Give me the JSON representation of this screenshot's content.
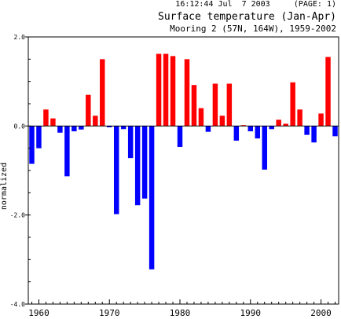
{
  "header": {
    "stamp": "16:12:44 Jul  7 2003     (PAGE: 1)",
    "title": "Surface temperature (Jan-Apr)",
    "subtitle": "Mooring 2 (57N, 164W), 1959-2002"
  },
  "colors": {
    "positive": "#ff0000",
    "negative": "#0000ff",
    "axis": "#000000"
  },
  "chart_data": {
    "type": "bar",
    "title": "Surface temperature (Jan-Apr)",
    "subtitle": "Mooring 2 (57N, 164W), 1959-2002",
    "ylabel": "normalized",
    "xlabel": "",
    "ylim": [
      -4.0,
      2.0
    ],
    "xlim": [
      1958.5,
      2002.5
    ],
    "yticks": [
      {
        "value": 2.0,
        "label": "2.0"
      },
      {
        "value": 0.0,
        "label": "0.0"
      },
      {
        "value": -2.0,
        "label": "-2.0"
      },
      {
        "value": -4.0,
        "label": "-4.0"
      }
    ],
    "xticks": [
      {
        "value": 1960,
        "label": "1960"
      },
      {
        "value": 1970,
        "label": "1970"
      },
      {
        "value": 1980,
        "label": "1980"
      },
      {
        "value": 1990,
        "label": "1990"
      },
      {
        "value": 2000,
        "label": "2000"
      }
    ],
    "grid": false,
    "years": [
      1959,
      1960,
      1961,
      1962,
      1963,
      1964,
      1965,
      1966,
      1967,
      1968,
      1969,
      1970,
      1971,
      1972,
      1973,
      1974,
      1975,
      1976,
      1977,
      1978,
      1979,
      1980,
      1981,
      1982,
      1983,
      1984,
      1985,
      1986,
      1987,
      1988,
      1989,
      1990,
      1991,
      1992,
      1993,
      1994,
      1995,
      1996,
      1997,
      1998,
      1999,
      2000,
      2001,
      2002
    ],
    "values": [
      -0.85,
      -0.5,
      0.37,
      0.17,
      -0.15,
      -1.13,
      -0.12,
      -0.08,
      0.7,
      0.23,
      1.5,
      -0.03,
      -1.98,
      -0.07,
      -0.72,
      -1.78,
      -1.63,
      -3.22,
      1.62,
      1.62,
      1.57,
      -0.47,
      1.5,
      0.92,
      0.4,
      -0.13,
      0.95,
      0.23,
      0.95,
      -0.33,
      0.02,
      -0.12,
      -0.28,
      -0.98,
      -0.07,
      0.14,
      0.05,
      0.98,
      0.37,
      -0.2,
      -0.37,
      0.28,
      1.55,
      -0.23
    ]
  }
}
